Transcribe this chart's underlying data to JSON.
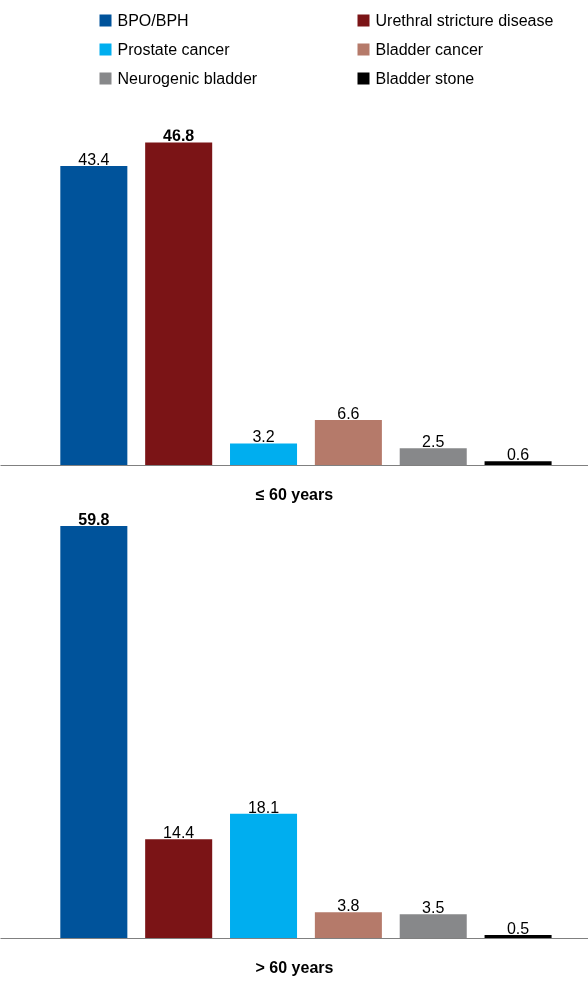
{
  "chart_data": [
    {
      "type": "other",
      "series": [
        {
          "name": "BPO/BPH",
          "color": "#00539b"
        },
        {
          "name": "Urethral stricture disease",
          "color": "#7b1416"
        },
        {
          "name": "Prostate cancer",
          "color": "#00aeef"
        },
        {
          "name": "Bladder cancer",
          "color": "#b57a6a"
        },
        {
          "name": "Neurogenic bladder",
          "color": "#87888a"
        },
        {
          "name": "Bladder stone",
          "color": "#000000"
        }
      ]
    },
    {
      "type": "bar",
      "xlabel": "≤ 60 years",
      "categories": [
        null,
        null,
        null,
        null,
        null,
        null
      ],
      "data_labels": true,
      "values": [
        43.4,
        46.8,
        3.2,
        6.6,
        2.5,
        0.6
      ],
      "colors": [
        "#00539b",
        "#7b1416",
        "#00aeef",
        "#b57a6a",
        "#87888a",
        "#000000"
      ]
    },
    {
      "type": "bar",
      "xlabel": "> 60 years",
      "categories": [
        null,
        null,
        null,
        null,
        null,
        null
      ],
      "data_labels": true,
      "values": [
        59.8,
        14.4,
        18.1,
        3.8,
        3.5,
        0.5
      ],
      "colors": [
        "#00539b",
        "#7b1416",
        "#00aeef",
        "#b57a6a",
        "#87888a",
        "#000000"
      ]
    }
  ]
}
